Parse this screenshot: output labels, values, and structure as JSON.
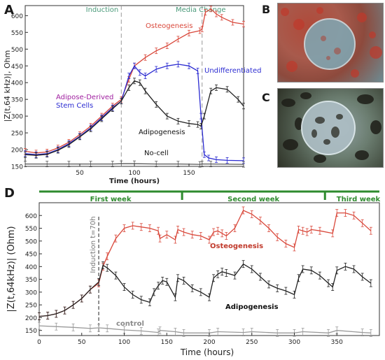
{
  "panels": {
    "a": "A",
    "b": "B",
    "c": "C",
    "d": "D"
  },
  "chart_data": [
    {
      "type": "line",
      "panel": "A",
      "xlabel": "Time (hours)",
      "ylabel": "|Z(t,64 kHz)|, Ohm",
      "xlim": [
        0,
        200
      ],
      "ylim": [
        150,
        630
      ],
      "xticks": [
        50,
        100,
        150
      ],
      "yticks": [
        150,
        200,
        250,
        300,
        350,
        400,
        450,
        500,
        550,
        600
      ],
      "events": [
        {
          "label": "Induction",
          "x": 88
        },
        {
          "label": "Media Change",
          "x": 162
        }
      ],
      "annotations": {
        "osteogenesis": "Osteogenesis",
        "undifferentiated": "Undifferentiated",
        "adipose_line1": "Adipose-Derived",
        "adipose_line2": "Stem Cells",
        "adipogenesis": "Adipogenesis",
        "nocell": "No-cell"
      },
      "series": [
        {
          "key": "osteo",
          "color": "#d9483b",
          "x": [
            0,
            10,
            20,
            30,
            40,
            50,
            60,
            70,
            80,
            88,
            95,
            100,
            110,
            120,
            130,
            140,
            150,
            160,
            162,
            165,
            170,
            175,
            180,
            190,
            200
          ],
          "y": [
            195,
            190,
            193,
            205,
            222,
            245,
            270,
            300,
            330,
            350,
            410,
            450,
            475,
            495,
            510,
            530,
            548,
            555,
            560,
            610,
            620,
            605,
            595,
            580,
            575
          ]
        },
        {
          "key": "undiff",
          "color": "#2b2bd1",
          "x": [
            0,
            10,
            20,
            30,
            40,
            50,
            60,
            70,
            80,
            88,
            95,
            100,
            105,
            110,
            120,
            130,
            140,
            150,
            158,
            161,
            164,
            168,
            175,
            185,
            200
          ],
          "y": [
            188,
            185,
            188,
            200,
            218,
            240,
            265,
            295,
            325,
            345,
            420,
            450,
            430,
            420,
            440,
            450,
            455,
            450,
            435,
            300,
            185,
            175,
            170,
            168,
            167
          ]
        },
        {
          "key": "adipo",
          "color": "#222222",
          "x": [
            0,
            10,
            20,
            30,
            40,
            50,
            60,
            70,
            80,
            88,
            95,
            100,
            105,
            110,
            120,
            130,
            140,
            150,
            158,
            161,
            164,
            170,
            175,
            185,
            195,
            200
          ],
          "y": [
            185,
            183,
            186,
            198,
            215,
            238,
            262,
            292,
            322,
            345,
            385,
            405,
            400,
            375,
            335,
            300,
            285,
            278,
            275,
            270,
            300,
            375,
            385,
            380,
            350,
            330
          ]
        },
        {
          "key": "nocell",
          "color": "#555555",
          "x": [
            0,
            20,
            40,
            60,
            80,
            88,
            100,
            120,
            140,
            160,
            162,
            170,
            200
          ],
          "y": [
            157,
            157,
            157,
            157,
            157,
            158,
            158,
            157,
            157,
            156,
            157,
            157,
            156
          ]
        }
      ]
    },
    {
      "type": "line",
      "panel": "D",
      "xlabel": "Time (hours)",
      "ylabel": "|Z(t,64kHz)| (Ohm)",
      "xlim": [
        0,
        400
      ],
      "ylim": [
        130,
        650
      ],
      "xticks": [
        0,
        50,
        100,
        150,
        200,
        250,
        300,
        350
      ],
      "yticks": [
        150,
        200,
        250,
        300,
        350,
        400,
        450,
        500,
        550,
        600
      ],
      "induction_label": "Induction t=70h",
      "induction_x": 70,
      "weeks": [
        {
          "label": "First week",
          "x0": 0,
          "x1": 168
        },
        {
          "label": "Second week",
          "x0": 168,
          "x1": 336
        },
        {
          "label": "Third week",
          "x0": 336,
          "x1": 400
        }
      ],
      "annotations": {
        "osteogenesis": "Osteogenesis",
        "adipogenesis": "Adipogenesis",
        "control": "control"
      },
      "series": [
        {
          "key": "osteo",
          "color": "#d9483b",
          "x": [
            0,
            10,
            20,
            30,
            40,
            50,
            60,
            70,
            75,
            80,
            90,
            100,
            110,
            120,
            130,
            140,
            142,
            150,
            160,
            163,
            170,
            180,
            190,
            200,
            205,
            210,
            215,
            220,
            230,
            240,
            250,
            260,
            270,
            280,
            290,
            300,
            305,
            310,
            315,
            320,
            330,
            345,
            350,
            360,
            370,
            380,
            390
          ],
          "y": [
            205,
            208,
            215,
            228,
            250,
            275,
            310,
            335,
            400,
            440,
            510,
            550,
            560,
            555,
            550,
            540,
            510,
            525,
            505,
            545,
            535,
            525,
            520,
            505,
            535,
            540,
            530,
            520,
            550,
            620,
            605,
            580,
            550,
            515,
            490,
            475,
            545,
            540,
            535,
            545,
            540,
            530,
            610,
            610,
            600,
            570,
            540
          ]
        },
        {
          "key": "adipo",
          "color": "#222222",
          "x": [
            0,
            10,
            20,
            30,
            40,
            50,
            60,
            70,
            75,
            80,
            90,
            100,
            110,
            120,
            130,
            135,
            140,
            145,
            150,
            160,
            163,
            170,
            180,
            190,
            200,
            205,
            210,
            215,
            220,
            230,
            240,
            250,
            260,
            270,
            280,
            290,
            300,
            305,
            310,
            320,
            330,
            340,
            345,
            350,
            360,
            370,
            380,
            390
          ],
          "y": [
            205,
            208,
            215,
            228,
            250,
            275,
            310,
            340,
            405,
            395,
            365,
            320,
            290,
            270,
            260,
            300,
            325,
            345,
            340,
            280,
            355,
            345,
            315,
            300,
            280,
            355,
            370,
            380,
            375,
            365,
            410,
            390,
            360,
            330,
            315,
            305,
            290,
            355,
            390,
            385,
            365,
            335,
            320,
            385,
            400,
            390,
            360,
            335
          ]
        },
        {
          "key": "control",
          "color": "#9a9a9a",
          "x": [
            0,
            20,
            40,
            60,
            70,
            80,
            100,
            120,
            140,
            142,
            160,
            170,
            200,
            210,
            240,
            250,
            280,
            300,
            310,
            340,
            350,
            380,
            390
          ],
          "y": [
            168,
            165,
            162,
            158,
            160,
            158,
            152,
            148,
            142,
            150,
            145,
            140,
            140,
            145,
            142,
            145,
            140,
            140,
            145,
            140,
            150,
            142,
            140
          ]
        }
      ]
    }
  ]
}
